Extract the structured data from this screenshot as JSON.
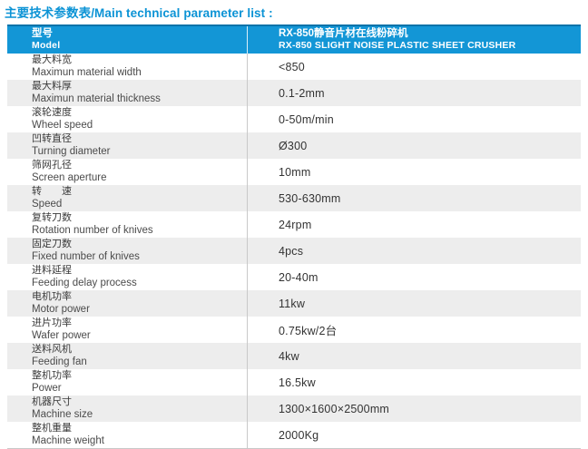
{
  "page_title": "主要技术参数表/Main technical parameter list :",
  "colors": {
    "accent_blue": "#1396d6",
    "header_top_edge": "#0d73a9",
    "title_blue": "#0b93d5",
    "row_alt_gray": "#ededed",
    "divider_gray": "#c9c9c9",
    "text_dark": "#3a3a3a"
  },
  "table": {
    "header": {
      "label_cn": "型号",
      "label_en": "Model",
      "value_cn": "RX-850静音片材在线粉碎机",
      "value_en": "RX-850 SLIGHT NOISE PLASTIC SHEET CRUSHER"
    },
    "rows": [
      {
        "cn": "最大料宽",
        "en": "Maximun material width",
        "value": "<850"
      },
      {
        "cn": "最大料厚",
        "en": "Maximun material thickness",
        "value": "0.1-2mm"
      },
      {
        "cn": "滚轮速度",
        "en": "Wheel speed",
        "value": "0-50m/min"
      },
      {
        "cn": "凹转直径",
        "en": "Turning diameter",
        "value": "Ø300"
      },
      {
        "cn": "筛网孔径",
        "en": "Screen aperture",
        "value": "10mm"
      },
      {
        "cn": "转　　速",
        "en": "Speed",
        "value": "530-630mm"
      },
      {
        "cn": "复转刀数",
        "en": "Rotation number of knives",
        "value": "24rpm"
      },
      {
        "cn": "固定刀数",
        "en": "Fixed number of knives",
        "value": "4pcs"
      },
      {
        "cn": "进料延程",
        "en": "Feeding delay process",
        "value": "20-40m"
      },
      {
        "cn": "电机功率",
        "en": "Motor power",
        "value": "11kw"
      },
      {
        "cn": "进片功率",
        "en": "Wafer power",
        "value": "0.75kw/2台"
      },
      {
        "cn": "送料风机",
        "en": "Feeding fan",
        "value": "4kw"
      },
      {
        "cn": "整机功率",
        "en": "Power",
        "value": "16.5kw"
      },
      {
        "cn": "机器尺寸",
        "en": "Machine size",
        "value": "1300×1600×2500mm"
      },
      {
        "cn": "整机重量",
        "en": "Machine weight",
        "value": "2000Kg"
      }
    ]
  }
}
